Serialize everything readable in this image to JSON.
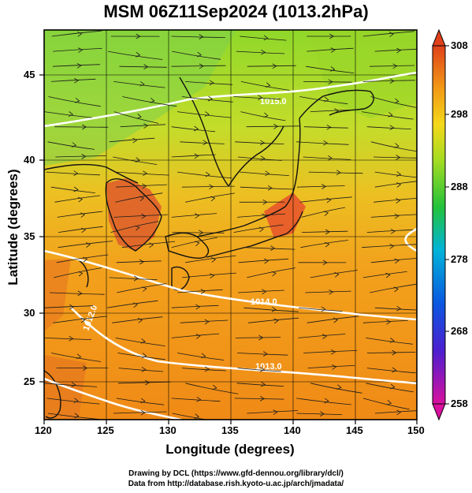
{
  "title": "MSM 06Z11Sep2024 (1013.2hPa)",
  "x_axis": {
    "label": "Longitude (degrees)",
    "ticks": [
      "120",
      "125",
      "130",
      "135",
      "140",
      "145",
      "150"
    ],
    "range": [
      120,
      150
    ]
  },
  "y_axis": {
    "label": "Latitude  (degrees)",
    "ticks": [
      "25",
      "30",
      "35",
      "40",
      "45"
    ],
    "range": [
      22.4,
      47.6
    ]
  },
  "colorbar": {
    "ticks": [
      "308",
      "298",
      "288",
      "278",
      "268",
      "258"
    ],
    "range": [
      258,
      308
    ],
    "colors": [
      "#d9109e",
      "#4b1fd0",
      "#0a57e0",
      "#00b4d8",
      "#23c23a",
      "#a4dc22",
      "#f4d81a",
      "#f29a16",
      "#e0411a"
    ]
  },
  "contour_labels": [
    "1015.0",
    "1014.0",
    "1013.0",
    "1012.0"
  ],
  "credits": {
    "line1": "Drawing by DCL (https://www.gfd-dennou.org/library/dcl/)",
    "line2": "Data from http://database.rish.kyoto-u.ac.jp/arch/jmadata/"
  }
}
